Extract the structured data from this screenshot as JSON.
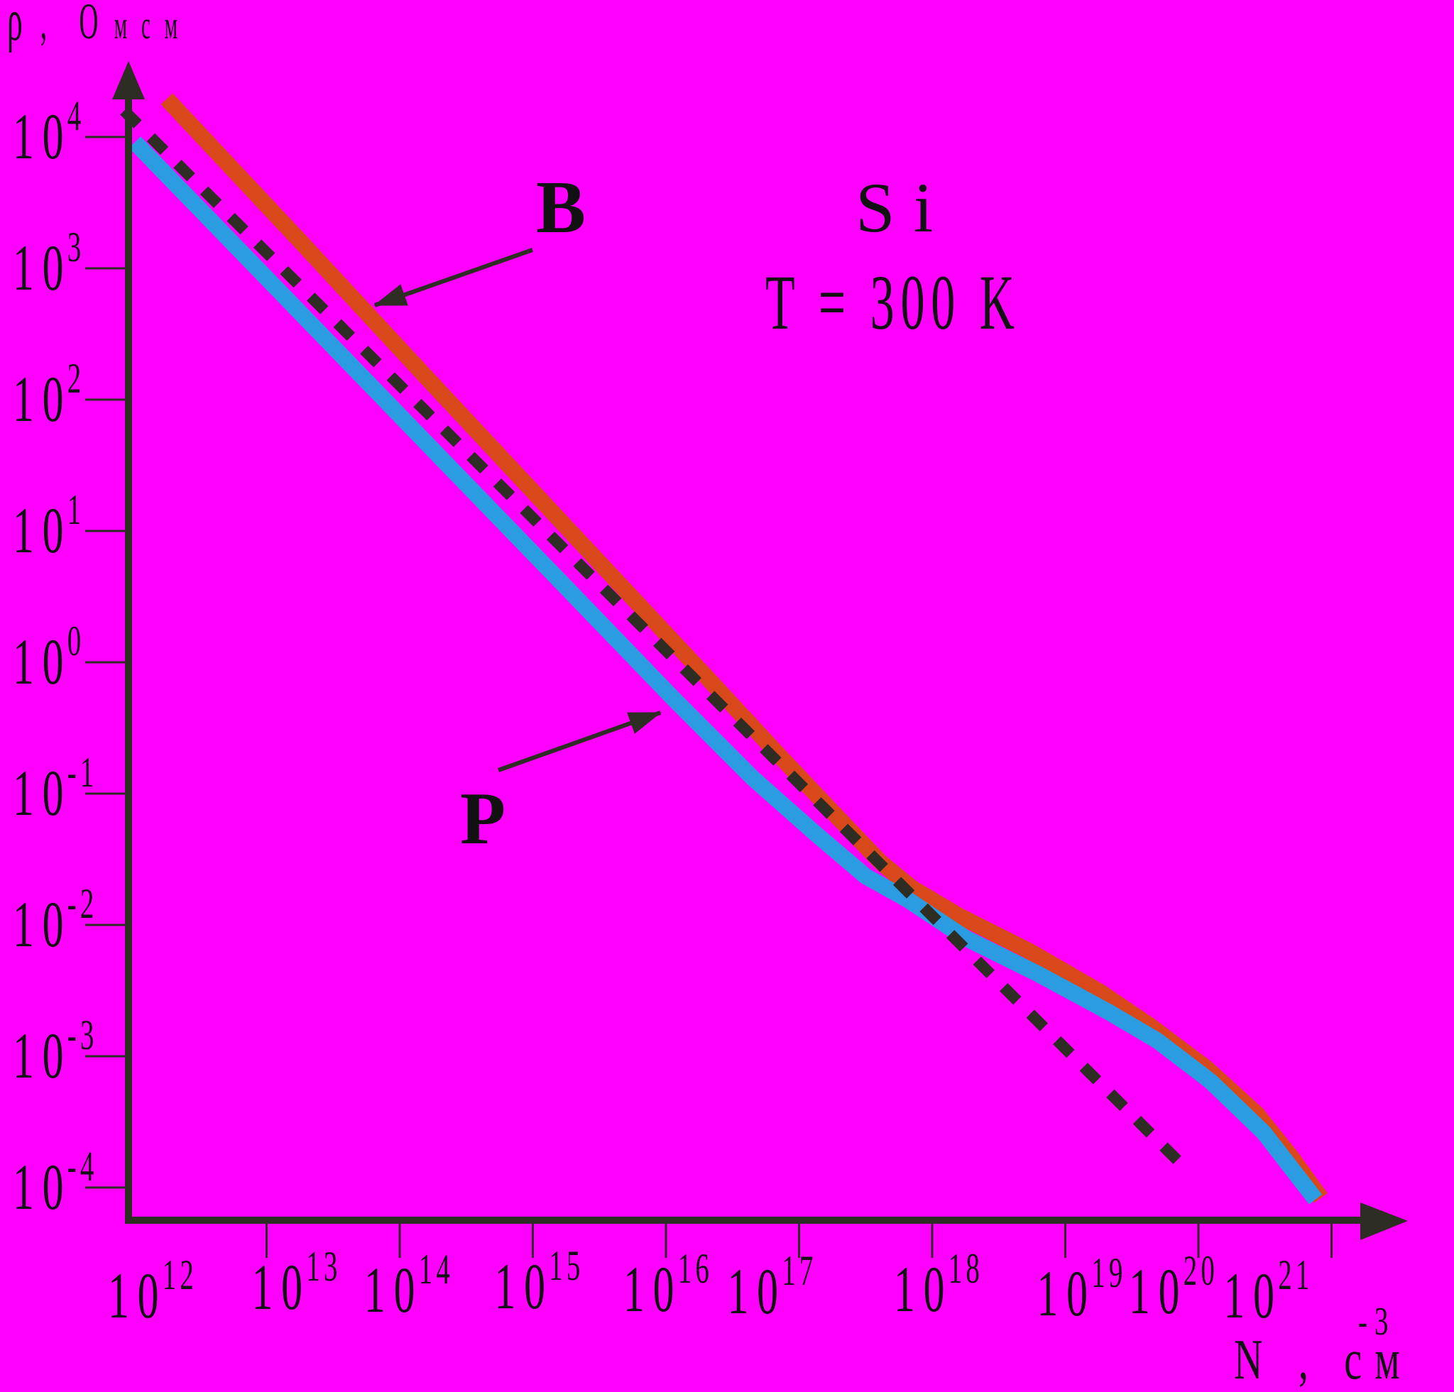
{
  "figure": {
    "background_color": "#FF00FF",
    "axis_color": "#2d2d24",
    "text_color": "#111111"
  },
  "labels": {
    "material": "Si",
    "temperature": "T = 300 K",
    "curve_b": "B",
    "curve_p": "P",
    "y_title": {
      "symbol": "ρ",
      "comma": ",",
      "unit_first": "О",
      "unit_rest": "мсм",
      "full": "ρ, Омсм"
    },
    "x_title": {
      "main": "N , см",
      "sup": "-3",
      "full": "N, см⁻³"
    }
  },
  "chart_data": {
    "type": "line",
    "x_scale": "log",
    "y_scale": "log",
    "title": "Si, T = 300 K",
    "xlabel": "N, см⁻³",
    "ylabel": "ρ, Омсм",
    "xlim_exponents": [
      12,
      21
    ],
    "ylim_exponents": [
      -4,
      4
    ],
    "grid": false,
    "legend_position": "inline-annotations",
    "tick_base_label": "10",
    "x_tick_exponents": [
      12,
      13,
      14,
      15,
      16,
      17,
      18,
      19,
      20,
      21
    ],
    "y_tick_exponents": [
      4,
      3,
      2,
      1,
      0,
      -1,
      -2,
      -3,
      -4
    ],
    "annotations": [
      {
        "text": "Si"
      },
      {
        "text": "T = 300 K"
      },
      {
        "text": "B",
        "points_to": "boron curve"
      },
      {
        "text": "P",
        "points_to": "phosphorus curve"
      }
    ],
    "series": [
      {
        "name": "B",
        "color": "#d9481b",
        "style": "solid",
        "points_logN_logRho": [
          [
            12.25,
            4.29
          ],
          [
            13.24,
            3.22
          ],
          [
            14.2,
            2.17
          ],
          [
            15.26,
            1.02
          ],
          [
            16.33,
            -0.14
          ],
          [
            16.86,
            -0.72
          ],
          [
            17.29,
            -1.18
          ],
          [
            17.61,
            -1.52
          ],
          [
            17.85,
            -1.72
          ],
          [
            18.2,
            -1.93
          ],
          [
            18.73,
            -2.2
          ],
          [
            19.26,
            -2.51
          ],
          [
            19.64,
            -2.77
          ],
          [
            20.06,
            -3.09
          ],
          [
            20.44,
            -3.44
          ],
          [
            20.7,
            -3.77
          ],
          [
            20.92,
            -4.08
          ]
        ]
      },
      {
        "name": "P",
        "color": "#2b9be2",
        "style": "solid",
        "points_logN_logRho": [
          [
            12.01,
            3.96
          ],
          [
            13.13,
            2.79
          ],
          [
            14.2,
            1.67
          ],
          [
            15.26,
            0.56
          ],
          [
            16.06,
            -0.28
          ],
          [
            16.65,
            -0.88
          ],
          [
            17.13,
            -1.31
          ],
          [
            17.5,
            -1.63
          ],
          [
            17.82,
            -1.81
          ],
          [
            18.25,
            -2.1
          ],
          [
            18.79,
            -2.37
          ],
          [
            19.32,
            -2.66
          ],
          [
            19.69,
            -2.88
          ],
          [
            20.09,
            -3.19
          ],
          [
            20.49,
            -3.58
          ],
          [
            20.88,
            -4.09
          ]
        ]
      },
      {
        "name": "dashed-reference",
        "color": "#2d2d24",
        "style": "dashed",
        "points_logN_logRho": [
          [
            11.93,
            4.2
          ],
          [
            19.86,
            -3.81
          ]
        ]
      }
    ]
  }
}
